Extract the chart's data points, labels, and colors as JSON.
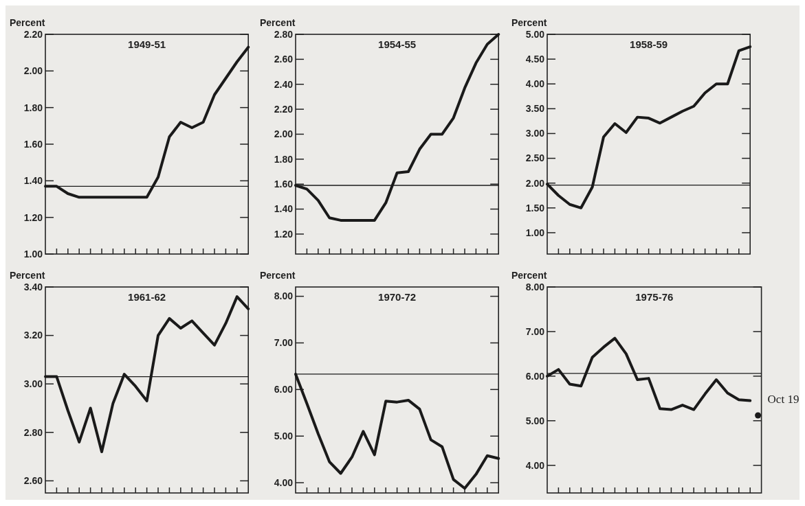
{
  "chart_data": [
    {
      "type": "line",
      "title": "1949-51",
      "ylabel": "Percent",
      "tick_labels": "y",
      "categories": [
        null,
        null,
        null,
        null,
        null,
        null,
        null,
        null,
        null,
        null,
        null,
        null,
        null,
        null,
        null,
        null,
        null,
        null,
        null
      ],
      "ylim": [
        1.0,
        2.2
      ],
      "yticks": [
        {
          "value": 1.0,
          "label": "1.00"
        },
        {
          "value": 1.2,
          "label": "1.20"
        },
        {
          "value": 1.4,
          "label": "1.40"
        },
        {
          "value": 1.6,
          "label": "1.60"
        },
        {
          "value": 1.8,
          "label": "1.80"
        },
        {
          "value": 2.0,
          "label": "2.00"
        },
        {
          "value": 2.2,
          "label": "2.20"
        }
      ],
      "series": [
        {
          "color": "#1a1a1a",
          "values": [
            1.37,
            1.37,
            1.33,
            1.31,
            1.31,
            1.31,
            1.31,
            1.31,
            1.31,
            1.31,
            1.42,
            1.64,
            1.72,
            1.69,
            1.72,
            1.87,
            1.96,
            2.05,
            2.13
          ]
        }
      ],
      "ref_lines": [
        {
          "axis": "y",
          "value": 1.37,
          "color": "#1a1a1a"
        }
      ]
    },
    {
      "type": "line",
      "title": "1954-55",
      "ylabel": "Percent",
      "tick_labels": "y",
      "categories": [
        null,
        null,
        null,
        null,
        null,
        null,
        null,
        null,
        null,
        null,
        null,
        null,
        null,
        null,
        null,
        null,
        null,
        null,
        null
      ],
      "ylim": [
        1.04,
        2.8
      ],
      "yticks": [
        {
          "value": 1.2,
          "label": "1.20"
        },
        {
          "value": 1.4,
          "label": "1.40"
        },
        {
          "value": 1.6,
          "label": "1.60"
        },
        {
          "value": 1.8,
          "label": "1.80"
        },
        {
          "value": 2.0,
          "label": "2.00"
        },
        {
          "value": 2.2,
          "label": "2.20"
        },
        {
          "value": 2.4,
          "label": "2.40"
        },
        {
          "value": 2.6,
          "label": "2.60"
        },
        {
          "value": 2.8,
          "label": "2.80"
        }
      ],
      "series": [
        {
          "color": "#1a1a1a",
          "values": [
            1.59,
            1.56,
            1.47,
            1.33,
            1.31,
            1.31,
            1.31,
            1.31,
            1.45,
            1.69,
            1.7,
            1.88,
            2.0,
            2.0,
            2.13,
            2.37,
            2.57,
            2.72,
            2.8
          ]
        }
      ],
      "ref_lines": [
        {
          "axis": "y",
          "value": 1.59,
          "color": "#1a1a1a"
        }
      ]
    },
    {
      "type": "line",
      "title": "1958-59",
      "ylabel": "Percent",
      "tick_labels": "y",
      "categories": [
        null,
        null,
        null,
        null,
        null,
        null,
        null,
        null,
        null,
        null,
        null,
        null,
        null,
        null,
        null,
        null,
        null,
        null,
        null
      ],
      "ylim": [
        0.57,
        5.0
      ],
      "yticks": [
        {
          "value": 1.0,
          "label": "1.00"
        },
        {
          "value": 1.5,
          "label": "1.50"
        },
        {
          "value": 2.0,
          "label": "2.00"
        },
        {
          "value": 2.5,
          "label": "2.50"
        },
        {
          "value": 3.0,
          "label": "3.00"
        },
        {
          "value": 3.5,
          "label": "3.50"
        },
        {
          "value": 4.0,
          "label": "4.00"
        },
        {
          "value": 4.5,
          "label": "4.50"
        },
        {
          "value": 5.0,
          "label": "5.00"
        }
      ],
      "series": [
        {
          "color": "#1a1a1a",
          "values": [
            1.98,
            1.75,
            1.57,
            1.5,
            1.92,
            2.93,
            3.2,
            3.02,
            3.33,
            3.31,
            3.21,
            3.33,
            3.45,
            3.55,
            3.82,
            4.0,
            4.0,
            4.67,
            4.75
          ]
        }
      ],
      "ref_lines": [
        {
          "axis": "y",
          "value": 1.96,
          "color": "#1a1a1a"
        }
      ]
    },
    {
      "type": "line",
      "title": "1961-62",
      "ylabel": "Percent",
      "tick_labels": "y",
      "categories": [
        null,
        null,
        null,
        null,
        null,
        null,
        null,
        null,
        null,
        null,
        null,
        null,
        null,
        null,
        null,
        null,
        null,
        null,
        null
      ],
      "ylim": [
        2.55,
        3.4
      ],
      "yticks": [
        {
          "value": 2.6,
          "label": "2.60"
        },
        {
          "value": 2.8,
          "label": "2.80"
        },
        {
          "value": 3.0,
          "label": "3.00"
        },
        {
          "value": 3.2,
          "label": "3.20"
        },
        {
          "value": 3.4,
          "label": "3.40"
        }
      ],
      "series": [
        {
          "color": "#1a1a1a",
          "values": [
            3.03,
            3.03,
            2.89,
            2.76,
            2.9,
            2.72,
            2.92,
            3.04,
            2.99,
            2.93,
            3.2,
            3.27,
            3.23,
            3.26,
            3.21,
            3.16,
            3.25,
            3.36,
            3.31
          ]
        }
      ],
      "ref_lines": [
        {
          "axis": "y",
          "value": 3.03,
          "color": "#1a1a1a"
        }
      ]
    },
    {
      "type": "line",
      "title": "1970-72",
      "ylabel": "Percent",
      "tick_labels": "y",
      "categories": [
        null,
        null,
        null,
        null,
        null,
        null,
        null,
        null,
        null,
        null,
        null,
        null,
        null,
        null,
        null,
        null,
        null,
        null,
        null
      ],
      "ylim": [
        3.78,
        8.2
      ],
      "yticks": [
        {
          "value": 4.0,
          "label": "4.00"
        },
        {
          "value": 5.0,
          "label": "5.00"
        },
        {
          "value": 6.0,
          "label": "6.00"
        },
        {
          "value": 7.0,
          "label": "7.00"
        },
        {
          "value": 8.0,
          "label": "8.00"
        }
      ],
      "series": [
        {
          "color": "#1a1a1a",
          "values": [
            6.33,
            5.7,
            5.05,
            4.45,
            4.2,
            4.55,
            5.1,
            4.6,
            5.75,
            5.73,
            5.77,
            5.58,
            4.92,
            4.77,
            4.07,
            3.88,
            4.18,
            4.58,
            4.52
          ]
        }
      ],
      "ref_lines": [
        {
          "axis": "y",
          "value": 6.33,
          "color": "#1a1a1a"
        }
      ]
    },
    {
      "type": "line",
      "title": "1975-76",
      "ylabel": "Percent",
      "tick_labels": "y",
      "categories": [
        null,
        null,
        null,
        null,
        null,
        null,
        null,
        null,
        null,
        null,
        null,
        null,
        null,
        null,
        null,
        null,
        null,
        null,
        null,
        null
      ],
      "ylim": [
        3.38,
        8.0
      ],
      "yticks": [
        {
          "value": 4.0,
          "label": "4.00"
        },
        {
          "value": 5.0,
          "label": "5.00"
        },
        {
          "value": 6.0,
          "label": "6.00"
        },
        {
          "value": 7.0,
          "label": "7.00"
        },
        {
          "value": 8.0,
          "label": "8.00"
        }
      ],
      "series": [
        {
          "color": "#1a1a1a",
          "values": [
            6.0,
            6.15,
            5.82,
            5.78,
            6.42,
            6.65,
            6.85,
            6.5,
            5.92,
            5.95,
            5.27,
            5.25,
            5.35,
            5.25,
            5.6,
            5.92,
            5.62,
            5.47,
            5.45,
            null
          ]
        },
        {
          "name": "Oct 19",
          "type": "scatter",
          "marker": "circle",
          "color": "#1a1a1a",
          "values": [
            null,
            null,
            null,
            null,
            null,
            null,
            null,
            null,
            null,
            null,
            null,
            null,
            null,
            null,
            null,
            null,
            null,
            null,
            null,
            5.12
          ]
        }
      ],
      "ref_lines": [
        {
          "axis": "y",
          "value": 6.06,
          "color": "#1a1a1a"
        }
      ]
    }
  ]
}
